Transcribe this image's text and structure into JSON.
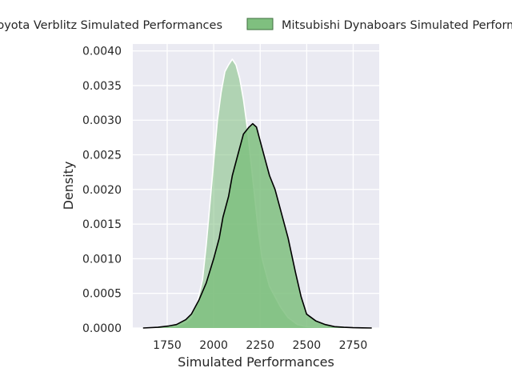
{
  "chart_data": {
    "type": "area",
    "title": "",
    "xlabel": "Simulated Performances",
    "ylabel": "Density",
    "xlim": [
      1565,
      2890
    ],
    "ylim": [
      0,
      0.0041
    ],
    "xticks": [
      1750,
      2000,
      2250,
      2500,
      2750
    ],
    "xtick_labels": [
      "1750",
      "2000",
      "2250",
      "2500",
      "2750"
    ],
    "yticks": [
      0,
      0.0005,
      0.001,
      0.0015,
      0.002,
      0.0025,
      0.003,
      0.0035,
      0.004
    ],
    "ytick_labels": [
      "0.0000",
      "0.0005",
      "0.0010",
      "0.0015",
      "0.0020",
      "0.0025",
      "0.0030",
      "0.0035",
      "0.0040"
    ],
    "grid": true,
    "legend_position": "top",
    "series": [
      {
        "name": "Toyota Verblitz Simulated Performances",
        "color": "#000000",
        "fill": "#7fbf7f",
        "x": [
          1620,
          1700,
          1760,
          1800,
          1850,
          1880,
          1920,
          1960,
          2000,
          2030,
          2050,
          2080,
          2100,
          2130,
          2160,
          2190,
          2210,
          2230,
          2250,
          2280,
          2300,
          2330,
          2360,
          2400,
          2440,
          2470,
          2500,
          2550,
          2600,
          2650,
          2700,
          2750,
          2800,
          2850
        ],
        "y": [
          0.0,
          1e-05,
          3e-05,
          5e-05,
          0.00012,
          0.0002,
          0.0004,
          0.00065,
          0.001,
          0.0013,
          0.0016,
          0.0019,
          0.0022,
          0.0025,
          0.0028,
          0.0029,
          0.00295,
          0.0029,
          0.0027,
          0.0024,
          0.0022,
          0.002,
          0.0017,
          0.0013,
          0.0008,
          0.00045,
          0.0002,
          0.0001,
          5e-05,
          2e-05,
          1e-05,
          5e-06,
          2e-06,
          0.0
        ]
      },
      {
        "name": "Mitsubishi Dynaboars Simulated Performances",
        "color": "#ffffff",
        "fill": "#7fbf7f",
        "x": [
          1720,
          1800,
          1850,
          1880,
          1910,
          1940,
          1960,
          1980,
          2000,
          2020,
          2040,
          2060,
          2080,
          2100,
          2120,
          2140,
          2160,
          2180,
          2200,
          2220,
          2240,
          2260,
          2280,
          2300,
          2320,
          2340,
          2360,
          2400,
          2450,
          2500,
          2550,
          2600,
          2650
        ],
        "y": [
          0.0,
          3e-05,
          8e-05,
          0.00015,
          0.00035,
          0.0007,
          0.0012,
          0.0018,
          0.0024,
          0.003,
          0.0034,
          0.0037,
          0.0038,
          0.00388,
          0.0038,
          0.0036,
          0.0033,
          0.0029,
          0.0024,
          0.0019,
          0.0014,
          0.001,
          0.0008,
          0.0006,
          0.0005,
          0.0004,
          0.0003,
          0.00015,
          5e-05,
          2e-05,
          1e-05,
          0.0,
          0.0
        ]
      }
    ]
  }
}
